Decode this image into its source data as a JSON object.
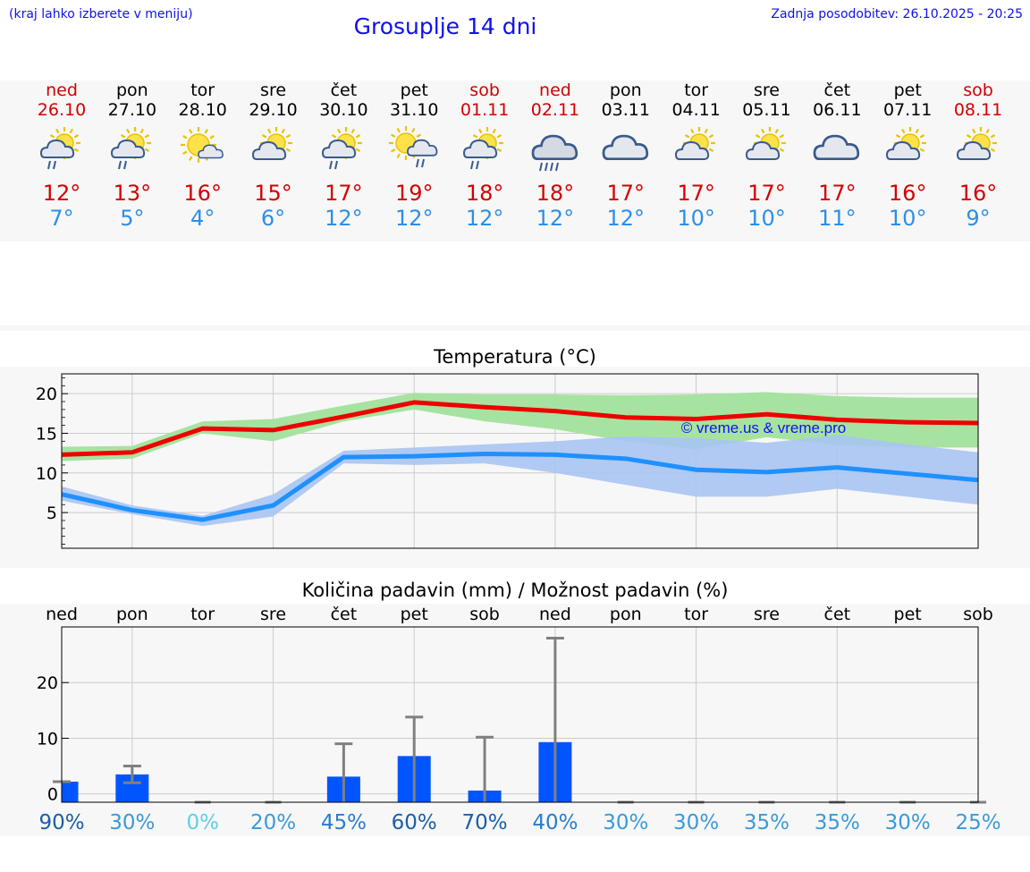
{
  "header": {
    "menu_hint": "(kraj lahko izberete v meniju)",
    "title": "Grosuplje 14 dni",
    "updated": "Zadnja posodobitev: 26.10.2025 - 20:25"
  },
  "days": [
    {
      "name": "ned",
      "date": "26.10",
      "weekend": true,
      "icon": "sun-cloud-rain-icon",
      "tmax": "12°",
      "tmin": "7°"
    },
    {
      "name": "pon",
      "date": "27.10",
      "weekend": false,
      "icon": "sun-cloud-rain-icon",
      "tmax": "13°",
      "tmin": "5°"
    },
    {
      "name": "tor",
      "date": "28.10",
      "weekend": false,
      "icon": "sun-small-cloud-icon",
      "tmax": "16°",
      "tmin": "4°"
    },
    {
      "name": "sre",
      "date": "29.10",
      "weekend": false,
      "icon": "sun-cloud-icon",
      "tmax": "15°",
      "tmin": "6°"
    },
    {
      "name": "čet",
      "date": "30.10",
      "weekend": false,
      "icon": "sun-cloud-rain-icon",
      "tmax": "17°",
      "tmin": "12°"
    },
    {
      "name": "pet",
      "date": "31.10",
      "weekend": false,
      "icon": "sun-cloud-showers-icon",
      "tmax": "19°",
      "tmin": "12°"
    },
    {
      "name": "sob",
      "date": "01.11",
      "weekend": true,
      "icon": "sun-cloud-rain-icon",
      "tmax": "18°",
      "tmin": "12°"
    },
    {
      "name": "ned",
      "date": "02.11",
      "weekend": true,
      "icon": "heavy-rain-icon",
      "tmax": "18°",
      "tmin": "12°"
    },
    {
      "name": "pon",
      "date": "03.11",
      "weekend": false,
      "icon": "cloud-icon",
      "tmax": "17°",
      "tmin": "12°"
    },
    {
      "name": "tor",
      "date": "04.11",
      "weekend": false,
      "icon": "sun-cloud-icon",
      "tmax": "17°",
      "tmin": "10°"
    },
    {
      "name": "sre",
      "date": "05.11",
      "weekend": false,
      "icon": "sun-cloud-icon",
      "tmax": "17°",
      "tmin": "10°"
    },
    {
      "name": "čet",
      "date": "06.11",
      "weekend": false,
      "icon": "cloud-icon",
      "tmax": "17°",
      "tmin": "11°"
    },
    {
      "name": "pet",
      "date": "07.11",
      "weekend": false,
      "icon": "sun-cloud-icon",
      "tmax": "16°",
      "tmin": "10°"
    },
    {
      "name": "sob",
      "date": "08.11",
      "weekend": true,
      "icon": "sun-cloud-icon",
      "tmax": "16°",
      "tmin": "9°"
    }
  ],
  "colors": {
    "title_blue": "#1010ee",
    "weekend_red": "#d40000",
    "tmax_line": "#ee0000",
    "tmax_band": "#a6e3a0",
    "tmin_line": "#1e90ff",
    "tmin_band": "#a9c4f2",
    "precip_bar": "#0055ff",
    "error_bar": "#808080",
    "panel_bg": "#f7f7f7",
    "grid": "#cccccc",
    "watermark": "#1010ee"
  },
  "chart_data": [
    {
      "type": "line",
      "title": "Temperatura (°C)",
      "x": [
        1,
        2,
        3,
        4,
        5,
        6,
        7,
        8,
        9,
        10,
        11,
        12,
        13,
        14
      ],
      "xlim": [
        1,
        14
      ],
      "ylim": [
        0.5,
        22.5
      ],
      "yticks": [
        5,
        10,
        15,
        20
      ],
      "grid": true,
      "watermark": "© vreme.us & vreme.pro",
      "series": [
        {
          "role": "max",
          "values": [
            12.3,
            12.6,
            15.6,
            15.4,
            17.1,
            18.9,
            18.3,
            17.8,
            17.0,
            16.8,
            17.4,
            16.7,
            16.4,
            16.3
          ],
          "band_low": [
            11.5,
            11.8,
            15.0,
            14.0,
            16.5,
            18.0,
            16.5,
            15.5,
            14.0,
            13.0,
            14.5,
            13.5,
            13.2,
            13.2
          ],
          "band_high": [
            13.3,
            13.4,
            16.5,
            16.8,
            18.5,
            20.1,
            19.9,
            19.9,
            19.8,
            19.9,
            20.2,
            19.7,
            19.5,
            19.5
          ]
        },
        {
          "role": "min",
          "values": [
            7.3,
            5.3,
            4.1,
            5.9,
            12.0,
            12.1,
            12.4,
            12.3,
            11.8,
            10.4,
            10.1,
            10.7,
            9.9,
            9.1
          ],
          "band_low": [
            6.5,
            4.8,
            3.3,
            4.5,
            11.2,
            11.0,
            11.2,
            10.0,
            8.5,
            7.0,
            7.0,
            8.0,
            7.0,
            6.0
          ],
          "band_high": [
            8.3,
            5.9,
            4.6,
            7.3,
            12.8,
            13.2,
            13.6,
            14.0,
            14.6,
            14.4,
            13.8,
            14.8,
            13.6,
            12.6
          ]
        }
      ]
    },
    {
      "type": "bar",
      "title": "Količina padavin (mm) / Možnost padavin (%)",
      "categories": [
        "ned",
        "pon",
        "tor",
        "sre",
        "čet",
        "pet",
        "sob",
        "ned",
        "pon",
        "tor",
        "sre",
        "čet",
        "pet",
        "sob"
      ],
      "values": [
        2.2,
        3.5,
        0,
        0,
        3.1,
        6.8,
        0.6,
        9.3,
        0,
        0,
        0,
        0,
        0,
        0
      ],
      "error_low": [
        2.2,
        2.0,
        0,
        0,
        0.0,
        0.0,
        0.0,
        0.0,
        0,
        0,
        0,
        0,
        0,
        0
      ],
      "error_high": [
        2.2,
        5.0,
        0,
        0,
        9.0,
        13.8,
        10.2,
        28.0,
        0,
        0,
        0,
        0,
        0,
        0
      ],
      "probability": [
        "90%",
        "30%",
        "0%",
        "20%",
        "45%",
        "60%",
        "70%",
        "40%",
        "30%",
        "30%",
        "35%",
        "35%",
        "30%",
        "25%"
      ],
      "probability_colors": [
        "#1a5fa8",
        "#3a9ad8",
        "#5dd0e8",
        "#3a9ad8",
        "#2a7ccc",
        "#1a5fa8",
        "#1a5fa8",
        "#2a7ccc",
        "#3a9ad8",
        "#3a9ad8",
        "#3a9ad8",
        "#3a9ad8",
        "#3a9ad8",
        "#3a9ad8"
      ],
      "ylim": [
        -1.5,
        30
      ],
      "yticks": [
        0,
        10,
        20
      ],
      "grid": true
    }
  ]
}
